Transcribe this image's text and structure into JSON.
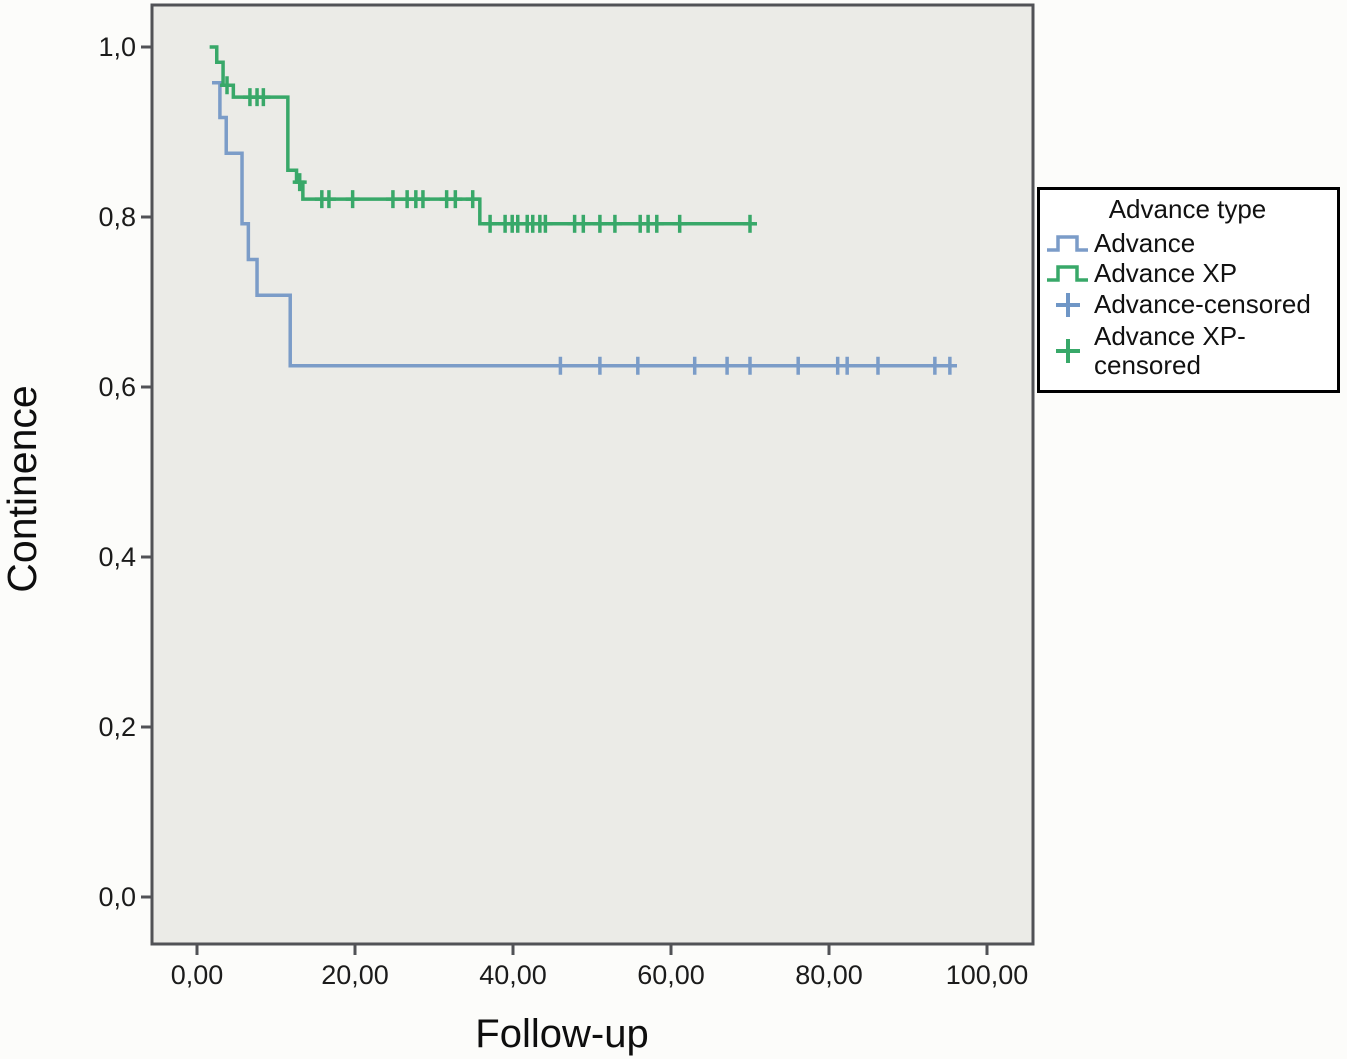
{
  "figure": {
    "x_axis_title": "Follow-up",
    "y_axis_title": "Continence"
  },
  "legend": {
    "title": "Advance type",
    "items": [
      {
        "label": "Advance",
        "symbol": "step-line",
        "color": "#7b9cc8"
      },
      {
        "label": "Advance XP",
        "symbol": "step-line",
        "color": "#38a869"
      },
      {
        "label": "Advance-censored",
        "symbol": "plus",
        "color": "#6f96c6"
      },
      {
        "label": "Advance XP-censored",
        "symbol": "plus",
        "color": "#38a869"
      }
    ]
  },
  "chart_data": {
    "type": "line",
    "subtype": "kaplan-meier-step",
    "title": "",
    "xlabel": "Follow-up",
    "ylabel": "Continence",
    "xlim": [
      -6,
      106
    ],
    "ylim": [
      -0.056,
      1.055
    ],
    "grid": false,
    "legend_position": "right-outside",
    "background": "#ebebe7",
    "x_ticks": [
      {
        "value": 0,
        "label": "0,00"
      },
      {
        "value": 20,
        "label": "20,00"
      },
      {
        "value": 40,
        "label": "40,00"
      },
      {
        "value": 60,
        "label": "60,00"
      },
      {
        "value": 80,
        "label": "80,00"
      },
      {
        "value": 100,
        "label": "100,00"
      }
    ],
    "y_ticks": [
      {
        "value": 1.0,
        "label": "1,0"
      },
      {
        "value": 0.8,
        "label": "0,8"
      },
      {
        "value": 0.6,
        "label": "0,6"
      },
      {
        "value": 0.4,
        "label": "0,4"
      },
      {
        "value": 0.2,
        "label": "0,2"
      },
      {
        "value": 0.0,
        "label": "0,0"
      }
    ],
    "series": [
      {
        "name": "Advance",
        "color": "#7b9cc8",
        "steps": [
          [
            1.9,
            0.958
          ],
          [
            2.9,
            0.917
          ],
          [
            3.7,
            0.875
          ],
          [
            5.7,
            0.792
          ],
          [
            6.5,
            0.75
          ],
          [
            7.6,
            0.708
          ],
          [
            11.8,
            0.625
          ]
        ],
        "end_x": 96.2,
        "censored": [
          [
            46,
            0.625
          ],
          [
            51,
            0.625
          ],
          [
            55.8,
            0.625
          ],
          [
            63,
            0.625
          ],
          [
            67.1,
            0.625
          ],
          [
            70,
            0.625
          ],
          [
            76.1,
            0.625
          ],
          [
            81.1,
            0.625
          ],
          [
            82.3,
            0.625
          ],
          [
            86.2,
            0.625
          ],
          [
            93.4,
            0.625
          ],
          [
            95.3,
            0.625
          ]
        ]
      },
      {
        "name": "Advance XP",
        "color": "#38a869",
        "steps": [
          [
            1.6,
            1.0
          ],
          [
            2.5,
            0.982
          ],
          [
            3.3,
            0.955
          ],
          [
            4.6,
            0.941
          ],
          [
            11.5,
            0.855
          ],
          [
            12.6,
            0.841
          ],
          [
            13.4,
            0.821
          ],
          [
            35.8,
            0.792
          ]
        ],
        "end_x": 70.6,
        "censored": [
          [
            3.8,
            0.955
          ],
          [
            6.7,
            0.941
          ],
          [
            7.6,
            0.941
          ],
          [
            8.4,
            0.941
          ],
          [
            13.0,
            0.841
          ],
          [
            15.8,
            0.821
          ],
          [
            16.7,
            0.821
          ],
          [
            19.7,
            0.821
          ],
          [
            24.8,
            0.821
          ],
          [
            26.6,
            0.821
          ],
          [
            27.7,
            0.821
          ],
          [
            28.6,
            0.821
          ],
          [
            31.6,
            0.821
          ],
          [
            32.7,
            0.821
          ],
          [
            34.9,
            0.821
          ],
          [
            37.1,
            0.792
          ],
          [
            39.0,
            0.792
          ],
          [
            39.9,
            0.792
          ],
          [
            40.6,
            0.792
          ],
          [
            41.8,
            0.792
          ],
          [
            42.5,
            0.792
          ],
          [
            43.4,
            0.792
          ],
          [
            44.1,
            0.792
          ],
          [
            47.8,
            0.792
          ],
          [
            48.9,
            0.792
          ],
          [
            51.0,
            0.792
          ],
          [
            52.9,
            0.792
          ],
          [
            56.1,
            0.792
          ],
          [
            57.1,
            0.792
          ],
          [
            58.2,
            0.792
          ],
          [
            61.1,
            0.792
          ],
          [
            70.0,
            0.792
          ]
        ]
      }
    ]
  }
}
